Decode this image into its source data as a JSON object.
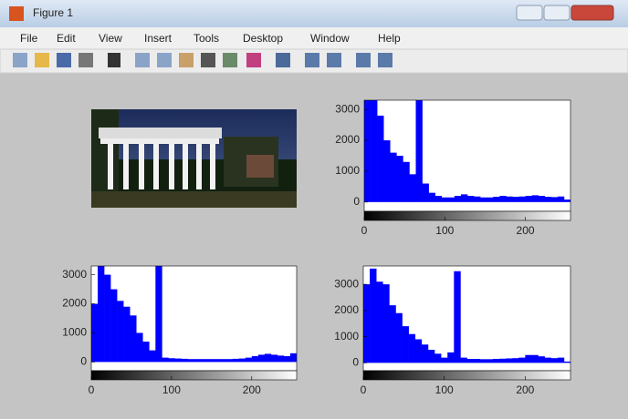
{
  "window": {
    "title": "Figure 1",
    "menu": [
      "File",
      "Edit",
      "View",
      "Insert",
      "Tools",
      "Desktop",
      "Window",
      "Help"
    ]
  },
  "chart_data": [
    {
      "type": "histogram",
      "color": "#0000ff",
      "bins": [
        0,
        8,
        16,
        24,
        32,
        40,
        48,
        56,
        64,
        72,
        80,
        88,
        96,
        104,
        112,
        120,
        128,
        136,
        144,
        152,
        160,
        168,
        176,
        184,
        192,
        200,
        208,
        216,
        224,
        232,
        240,
        248,
        256
      ],
      "counts": [
        3300,
        3300,
        2800,
        2000,
        1600,
        1500,
        1300,
        900,
        3300,
        600,
        300,
        200,
        150,
        150,
        200,
        250,
        200,
        180,
        150,
        150,
        170,
        200,
        180,
        170,
        180,
        200,
        220,
        200,
        170,
        160,
        180,
        80
      ],
      "xlim": [
        0,
        256
      ],
      "ylim": [
        -300,
        3300
      ],
      "xticks": [
        0,
        100,
        200
      ],
      "yticks": [
        0,
        1000,
        2000,
        3000
      ]
    },
    {
      "type": "histogram",
      "color": "#0000ff",
      "bins": [
        0,
        8,
        16,
        24,
        32,
        40,
        48,
        56,
        64,
        72,
        80,
        88,
        96,
        104,
        112,
        120,
        128,
        136,
        144,
        152,
        160,
        168,
        176,
        184,
        192,
        200,
        208,
        216,
        224,
        232,
        240,
        248,
        256
      ],
      "counts": [
        2000,
        3300,
        3000,
        2500,
        2100,
        1900,
        1600,
        1000,
        700,
        400,
        3300,
        150,
        130,
        120,
        110,
        100,
        100,
        100,
        100,
        100,
        100,
        100,
        110,
        120,
        150,
        200,
        250,
        280,
        250,
        220,
        200,
        300
      ],
      "xlim": [
        0,
        256
      ],
      "ylim": [
        -300,
        3300
      ],
      "xticks": [
        0,
        100,
        200
      ],
      "yticks": [
        0,
        1000,
        2000,
        3000
      ]
    },
    {
      "type": "histogram",
      "color": "#0000ff",
      "bins": [
        0,
        8,
        16,
        24,
        32,
        40,
        48,
        56,
        64,
        72,
        80,
        88,
        96,
        104,
        112,
        120,
        128,
        136,
        144,
        152,
        160,
        168,
        176,
        184,
        192,
        200,
        208,
        216,
        224,
        232,
        240,
        248,
        256
      ],
      "counts": [
        3000,
        3600,
        3100,
        3000,
        2200,
        1900,
        1400,
        1100,
        900,
        700,
        500,
        350,
        200,
        400,
        3500,
        200,
        150,
        150,
        140,
        140,
        150,
        160,
        170,
        180,
        200,
        300,
        300,
        250,
        200,
        180,
        200,
        50
      ],
      "xlim": [
        0,
        256
      ],
      "ylim": [
        -300,
        3700
      ],
      "xticks": [
        0,
        100,
        200
      ],
      "yticks": [
        0,
        1000,
        2000,
        3000
      ]
    }
  ]
}
